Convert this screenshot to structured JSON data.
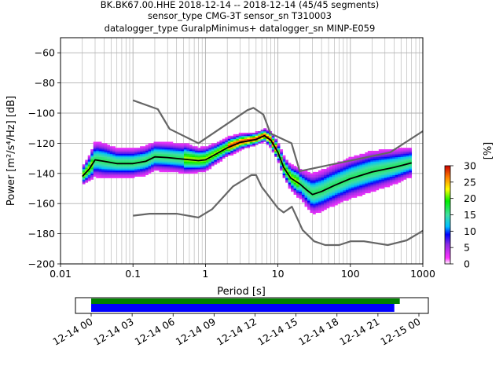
{
  "chart_data": {
    "type": "heatmap",
    "title": {
      "line1": "BK.BK67.00.HHE   2018-12-14 -- 2018-12-14  (45/45 segments)",
      "line2": "sensor_type CMG-3T sensor_sn T310003",
      "line3": "datalogger_type GuralpMinimus+ datalogger_sn MINP-E059"
    },
    "xlabel": "Period [s]",
    "ylabel": "Power [m²/s⁴/Hz] [dB]",
    "x_scale": "log",
    "xlim": [
      0.01,
      1000
    ],
    "ylim": [
      -200,
      -50
    ],
    "grid": true,
    "x_ticks": [
      {
        "value": 0.01,
        "label": "0.01"
      },
      {
        "value": 0.1,
        "label": "0.1"
      },
      {
        "value": 1,
        "label": "1"
      },
      {
        "value": 10,
        "label": "10"
      },
      {
        "value": 100,
        "label": "100"
      },
      {
        "value": 1000,
        "label": "1000"
      }
    ],
    "y_ticks": [
      -60,
      -80,
      -100,
      -120,
      -140,
      -160,
      -180,
      -200
    ],
    "colorbar": {
      "label": "[%]",
      "min": 0,
      "max": 30,
      "ticks": [
        0,
        5,
        10,
        15,
        20,
        25,
        30
      ]
    },
    "series": [
      {
        "kind": "noise-model-high",
        "color": "#666666",
        "points": [
          [
            0.1,
            -91.5
          ],
          [
            0.22,
            -97.4
          ],
          [
            0.32,
            -110.5
          ],
          [
            0.8,
            -120
          ],
          [
            3.8,
            -98
          ],
          [
            4.6,
            -96.5
          ],
          [
            6.3,
            -101
          ],
          [
            7.9,
            -113.5
          ],
          [
            15.4,
            -120
          ],
          [
            20,
            -138.5
          ],
          [
            354.8,
            -126
          ],
          [
            1000,
            -112
          ]
        ]
      },
      {
        "kind": "noise-model-low",
        "color": "#666666",
        "points": [
          [
            0.1,
            -168
          ],
          [
            0.17,
            -166.7
          ],
          [
            0.4,
            -166.7
          ],
          [
            0.8,
            -169.2
          ],
          [
            1.24,
            -163.7
          ],
          [
            2.4,
            -148.6
          ],
          [
            4.3,
            -141.1
          ],
          [
            5,
            -141.1
          ],
          [
            6,
            -149
          ],
          [
            10,
            -163
          ],
          [
            12,
            -165.9
          ],
          [
            15.6,
            -162.1
          ],
          [
            21.9,
            -177.5
          ],
          [
            31.6,
            -185
          ],
          [
            45,
            -187.5
          ],
          [
            70,
            -187.5
          ],
          [
            101,
            -185
          ],
          [
            154,
            -185
          ],
          [
            328,
            -187.5
          ],
          [
            600,
            -184.4
          ],
          [
            1000,
            -178
          ]
        ]
      },
      {
        "kind": "mean",
        "color": "#000000",
        "points": [
          [
            0.02,
            -142
          ],
          [
            0.025,
            -137
          ],
          [
            0.03,
            -131
          ],
          [
            0.04,
            -132
          ],
          [
            0.06,
            -133.5
          ],
          [
            0.1,
            -133.5
          ],
          [
            0.15,
            -132
          ],
          [
            0.2,
            -129
          ],
          [
            0.3,
            -129.5
          ],
          [
            0.5,
            -130.5
          ],
          [
            0.8,
            -131.5
          ],
          [
            1.0,
            -131
          ],
          [
            1.3,
            -128
          ],
          [
            2.0,
            -123
          ],
          [
            3.0,
            -119.5
          ],
          [
            5.0,
            -117.5
          ],
          [
            6.5,
            -115
          ],
          [
            8.0,
            -118
          ],
          [
            10,
            -126
          ],
          [
            12,
            -136
          ],
          [
            15,
            -143
          ],
          [
            20,
            -147
          ],
          [
            25,
            -151
          ],
          [
            30,
            -154
          ],
          [
            40,
            -152
          ],
          [
            60,
            -148
          ],
          [
            100,
            -143.5
          ],
          [
            200,
            -139
          ],
          [
            400,
            -136
          ],
          [
            700,
            -133
          ]
        ]
      }
    ],
    "psd_spread": {
      "description": "probability density of PSD samples",
      "points": [
        [
          0.02,
          -142,
          3
        ],
        [
          0.025,
          -137,
          4
        ],
        [
          0.03,
          -131,
          6
        ],
        [
          0.04,
          -132,
          6
        ],
        [
          0.06,
          -133.5,
          5
        ],
        [
          0.1,
          -133.5,
          5
        ],
        [
          0.15,
          -132,
          5
        ],
        [
          0.2,
          -129,
          5
        ],
        [
          0.3,
          -129.5,
          5
        ],
        [
          0.5,
          -130.5,
          5
        ],
        [
          0.8,
          -131.5,
          4
        ],
        [
          1.0,
          -131,
          4
        ],
        [
          1.3,
          -128,
          3.5
        ],
        [
          2.0,
          -123,
          3
        ],
        [
          3.0,
          -119.5,
          2.5
        ],
        [
          5.0,
          -117.5,
          2
        ],
        [
          6.5,
          -115,
          2
        ],
        [
          8.0,
          -118,
          2.5
        ],
        [
          10,
          -126,
          3
        ],
        [
          12,
          -136,
          3.5
        ],
        [
          15,
          -143,
          4
        ],
        [
          20,
          -147,
          5
        ],
        [
          25,
          -151,
          6
        ],
        [
          30,
          -154,
          7
        ],
        [
          40,
          -152,
          7
        ],
        [
          60,
          -148,
          7
        ],
        [
          100,
          -143.5,
          7
        ],
        [
          200,
          -139,
          7
        ],
        [
          400,
          -136,
          6
        ],
        [
          700,
          -133,
          5
        ]
      ]
    },
    "time_axis": {
      "tick_labels": [
        "12-14 00",
        "12-14 03",
        "12-14 06",
        "12-14 09",
        "12-14 12",
        "12-14 15",
        "12-14 18",
        "12-14 21",
        "12-15 00"
      ],
      "data_coverage": {
        "start_hour": 0,
        "end_hour": 22.6,
        "color": "#008000"
      },
      "psd_coverage": {
        "start_hour": 0,
        "end_hour": 22.2,
        "color": "#0000ff"
      }
    }
  }
}
